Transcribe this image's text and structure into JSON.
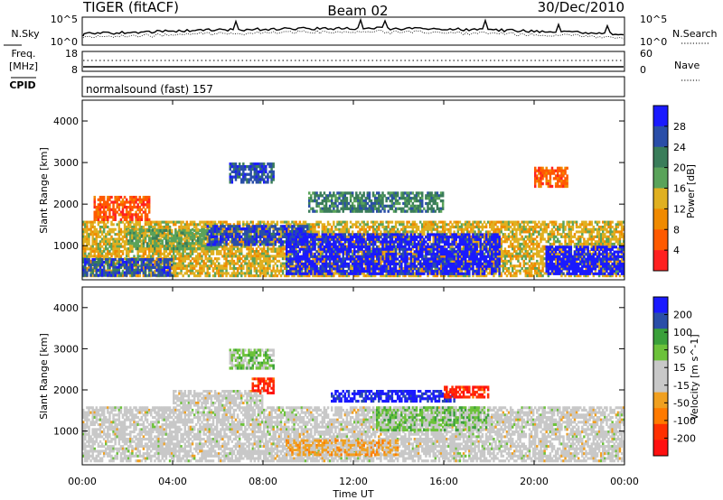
{
  "header": {
    "radar": "TIGER (fitACF)",
    "beam": "Beam 02",
    "date": "30/Dec/2010"
  },
  "top_panel": {
    "left_label": "N.Sky",
    "right_label": "N.Search",
    "left_ticks": [
      "10^5",
      "10^0"
    ],
    "right_ticks": [
      "10^5",
      "10^0"
    ]
  },
  "freq_panel": {
    "left_label_1": "Freq.",
    "left_label_2": "[MHz]",
    "left_ticks": [
      "18",
      "8"
    ],
    "right_label": "Nave",
    "right_ticks": [
      "60",
      "0"
    ]
  },
  "cpid_panel": {
    "label": "CPID",
    "text": "normalsound (fast) 157"
  },
  "x_axis": {
    "ticks": [
      "00:00",
      "04:00",
      "08:00",
      "12:00",
      "16:00",
      "20:00",
      "00:00"
    ],
    "label": "Time UT"
  },
  "colors": {
    "power_scale": [
      "#1a1aff",
      "#2a4ea8",
      "#3a7d5a",
      "#5aa35a",
      "#e0b020",
      "#f08a00",
      "#ff5a00",
      "#ff2020"
    ],
    "velocity_scale": [
      "#1a1aff",
      "#2a4ea8",
      "#3aa03a",
      "#6cc23a",
      "#c8c8c8",
      "#c8c8c8",
      "#f0a020",
      "#ff7a00",
      "#ff3000",
      "#ff1010"
    ]
  },
  "chart_data": [
    {
      "type": "heatmap",
      "title": "Power",
      "ylabel": "Slant Range [km]",
      "xlabel": "Time UT",
      "ylim": [
        180,
        4500
      ],
      "yticks": [
        1000,
        2000,
        3000,
        4000
      ],
      "colorbar": {
        "label": "Power [dB]",
        "ticks": [
          "28",
          "24",
          "20",
          "16",
          "12",
          "8",
          "4"
        ],
        "range": [
          0,
          32
        ]
      },
      "regions": [
        {
          "t0": 0.0,
          "t1": 24.0,
          "r0": 250,
          "r1": 1600,
          "value": 14
        },
        {
          "t0": 0.0,
          "t1": 4.0,
          "r0": 260,
          "r1": 700,
          "value": 26
        },
        {
          "t0": 2.0,
          "t1": 6.0,
          "r0": 900,
          "r1": 1400,
          "value": 18
        },
        {
          "t0": 5.5,
          "t1": 10.0,
          "r0": 1000,
          "r1": 1500,
          "value": 27
        },
        {
          "t0": 6.5,
          "t1": 8.5,
          "r0": 2500,
          "r1": 3000,
          "value": 26
        },
        {
          "t0": 9.0,
          "t1": 18.5,
          "r0": 300,
          "r1": 1300,
          "value": 30
        },
        {
          "t0": 10.0,
          "t1": 16.0,
          "r0": 1800,
          "r1": 2300,
          "value": 22
        },
        {
          "t0": 20.5,
          "t1": 24.0,
          "r0": 300,
          "r1": 1000,
          "value": 31
        },
        {
          "t0": 0.5,
          "t1": 3.0,
          "r0": 1600,
          "r1": 2200,
          "value": 6
        },
        {
          "t0": 20.0,
          "t1": 21.5,
          "r0": 2400,
          "r1": 2900,
          "value": 6
        }
      ]
    },
    {
      "type": "heatmap",
      "title": "Velocity",
      "ylabel": "Slant Range [km]",
      "xlabel": "Time UT",
      "ylim": [
        180,
        4500
      ],
      "yticks": [
        1000,
        2000,
        3000,
        4000
      ],
      "colorbar": {
        "label": "Velocity [m s^-1]",
        "ticks": [
          "200",
          "100",
          "50",
          "15",
          "-15",
          "-50",
          "-100",
          "-200"
        ],
        "range": [
          -250,
          250
        ]
      },
      "regions": [
        {
          "t0": 0.0,
          "t1": 24.0,
          "r0": 250,
          "r1": 1600,
          "value": 0
        },
        {
          "t0": 4.0,
          "t1": 8.0,
          "r0": 1600,
          "r1": 2000,
          "value": 0
        },
        {
          "t0": 6.5,
          "t1": 8.5,
          "r0": 2500,
          "r1": 3000,
          "value": 60
        },
        {
          "t0": 11.0,
          "t1": 16.5,
          "r0": 1700,
          "r1": 2000,
          "value": 220
        },
        {
          "t0": 13.0,
          "t1": 18.0,
          "r0": 1000,
          "r1": 1600,
          "value": 70
        },
        {
          "t0": 9.0,
          "t1": 14.0,
          "r0": 400,
          "r1": 800,
          "value": -60
        },
        {
          "t0": 7.5,
          "t1": 8.5,
          "r0": 1900,
          "r1": 2300,
          "value": -200
        },
        {
          "t0": 16.0,
          "t1": 18.0,
          "r0": 1800,
          "r1": 2100,
          "value": -200
        }
      ]
    }
  ]
}
